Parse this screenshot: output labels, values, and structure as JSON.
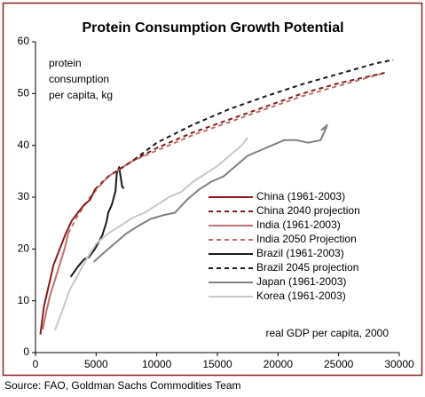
{
  "chart_data": {
    "type": "line",
    "title": "Protein Consumption Growth Potential",
    "ylabel": [
      "protein",
      "consumption",
      "per capita, kg"
    ],
    "xlabel": "real GDP per capita, 2000",
    "source": "Source: FAO, Goldman Sachs Commodities Team",
    "xlim": [
      0,
      30000
    ],
    "xticks": [
      0,
      5000,
      10000,
      15000,
      20000,
      25000,
      30000
    ],
    "ylim": [
      0,
      60
    ],
    "yticks": [
      0,
      10,
      20,
      30,
      40,
      50,
      60
    ],
    "series": [
      {
        "name": "China (1961-2003)",
        "color": "#8b1a1a",
        "dashed": false,
        "x": [
          400,
          700,
          1000,
          1500,
          2000,
          2500,
          3000,
          3500,
          4000,
          4500,
          4900
        ],
        "values": [
          3.5,
          9,
          12,
          17,
          20,
          23,
          25.5,
          27,
          28.5,
          29.5,
          31.5
        ]
      },
      {
        "name": "China 2040 projection",
        "color": "#8b1a1a",
        "dashed": true,
        "x": [
          4900,
          6000,
          8000,
          10000,
          13000,
          16000,
          19000,
          22000,
          25000,
          28800
        ],
        "values": [
          31.5,
          34,
          37,
          39.5,
          42.5,
          45,
          47.5,
          50,
          52,
          54
        ]
      },
      {
        "name": "India (1961-2003)",
        "color": "#c07070",
        "dashed": false,
        "x": [
          600,
          900,
          1200,
          1600,
          2000,
          2400,
          2700
        ],
        "values": [
          4.5,
          8,
          11,
          14,
          17,
          20,
          23
        ]
      },
      {
        "name": "India 2050 Projection",
        "color": "#c07070",
        "dashed": true,
        "x": [
          2700,
          3500,
          4500,
          6000,
          8000,
          10000,
          13000,
          16000,
          19000,
          22000,
          25000,
          28800
        ],
        "values": [
          23,
          26.5,
          30,
          34,
          37,
          39,
          42,
          44.5,
          47,
          49.5,
          51.5,
          54
        ]
      },
      {
        "name": "Brazil (1961-2003)",
        "color": "#1a1a1a",
        "dashed": false,
        "x": [
          2900,
          3500,
          4000,
          4400,
          4900,
          5500,
          5850,
          6000,
          6300,
          6600,
          6700,
          6900,
          7150,
          7300
        ],
        "values": [
          14.6,
          16.6,
          18,
          18.4,
          20,
          22.6,
          25.2,
          27,
          28.6,
          31.2,
          34.6,
          35.8,
          32,
          31.7
        ]
      },
      {
        "name": "Brazil 2045 projection",
        "color": "#1a1a1a",
        "dashed": true,
        "x": [
          7000,
          8000,
          10000,
          13000,
          16000,
          19000,
          22000,
          25000,
          28000,
          29500
        ],
        "values": [
          35.5,
          37,
          40.5,
          44,
          47,
          49.5,
          51.8,
          53.8,
          55.8,
          56.5
        ]
      },
      {
        "name": "Japan (1961-2003)",
        "color": "#808080",
        "dashed": false,
        "x": [
          4800,
          5500,
          6500,
          7500,
          8500,
          9500,
          10500,
          11500,
          12500,
          13500,
          14500,
          15500,
          16500,
          17500,
          18500,
          19500,
          20500,
          21500,
          22500,
          23500,
          24000,
          23600,
          24100
        ],
        "values": [
          17.5,
          19,
          21,
          23,
          24.5,
          25.8,
          26.5,
          27,
          29.5,
          31.5,
          33,
          34,
          36,
          38,
          39,
          40,
          41,
          41,
          40.5,
          41,
          43.5,
          43,
          44
        ]
      },
      {
        "name": "Korea (1961-2003)",
        "color": "#c8c8c8",
        "dashed": false,
        "x": [
          1600,
          2200,
          2800,
          3500,
          4200,
          5000,
          6000,
          7000,
          8000,
          9000,
          10000,
          11000,
          12000,
          13000,
          14000,
          15000,
          16000,
          17000,
          17500
        ],
        "values": [
          4.3,
          8,
          12,
          15,
          18,
          21,
          23,
          24.5,
          26,
          27,
          28.5,
          30,
          31,
          33,
          34.5,
          36,
          38,
          40,
          41.5
        ]
      }
    ]
  }
}
